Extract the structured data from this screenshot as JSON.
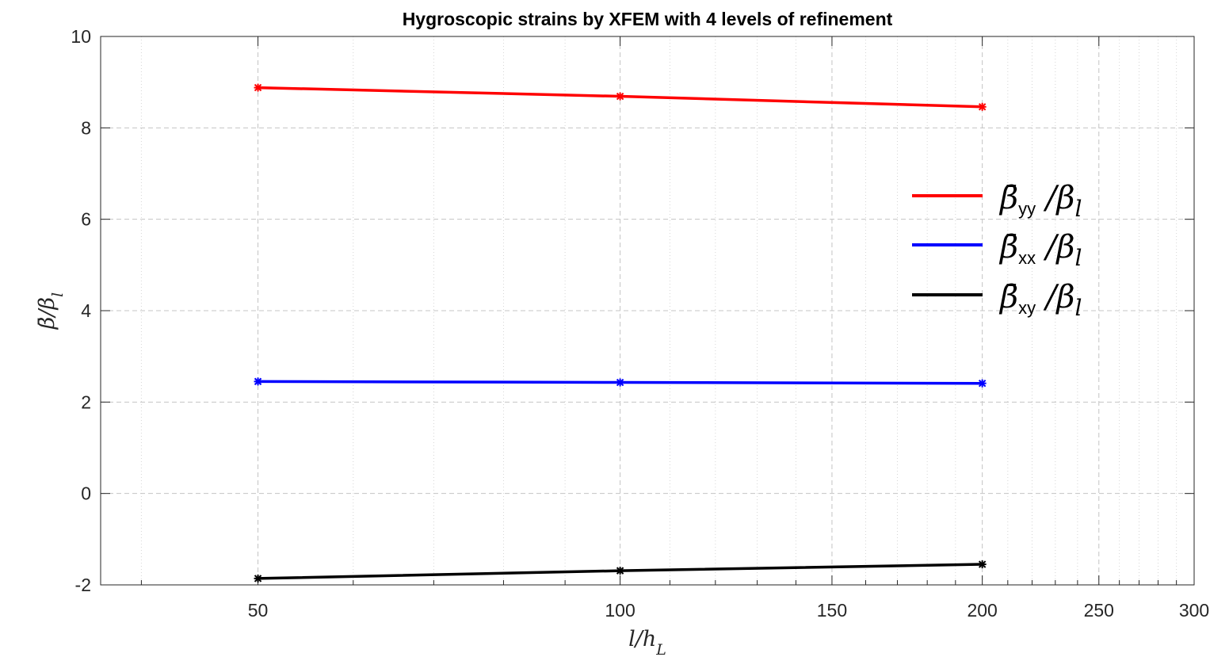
{
  "chart_data": {
    "type": "line",
    "title": "Hygroscopic strains by XFEM with 4 levels of refinement",
    "xlabel": "l/h_L",
    "ylabel": "β̄/β_l",
    "xscale": "log",
    "xlim": [
      37,
      300
    ],
    "ylim": [
      -2,
      10
    ],
    "xticks": [
      50,
      100,
      150,
      200,
      250,
      300
    ],
    "yticks": [
      -2,
      0,
      2,
      4,
      6,
      8,
      10
    ],
    "grid": true,
    "legend_position": "right",
    "x": [
      50,
      100,
      200
    ],
    "series": [
      {
        "name": "β̄yy /βl",
        "legend_sub": "yy",
        "color": "#ff0000",
        "values": [
          8.88,
          8.69,
          8.46
        ]
      },
      {
        "name": "β̄xx /βl",
        "legend_sub": "xx",
        "color": "#0000ff",
        "values": [
          2.45,
          2.43,
          2.41
        ]
      },
      {
        "name": "β̄xy /βl",
        "legend_sub": "xy",
        "color": "#000000",
        "values": [
          -1.86,
          -1.69,
          -1.55
        ]
      }
    ]
  }
}
